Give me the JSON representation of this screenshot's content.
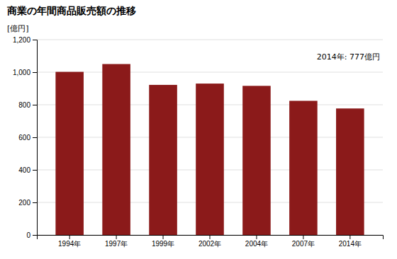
{
  "chart_data": {
    "type": "bar",
    "title": "商業の年間商品販売額の推移",
    "ylabel": "[億円]",
    "annotation": "2014年: 777億円",
    "categories": [
      "1994年",
      "1997年",
      "1999年",
      "2002年",
      "2004年",
      "2007年",
      "2014年"
    ],
    "values": [
      1002,
      1050,
      922,
      930,
      916,
      824,
      777
    ],
    "color": "#8B1A1A",
    "ylim": [
      0,
      1200
    ],
    "yticks": [
      0,
      200,
      400,
      600,
      800,
      {
        "value": 1000,
        "label": "1,000"
      },
      {
        "value": 1200,
        "label": "1,200"
      }
    ],
    "grid": true
  }
}
